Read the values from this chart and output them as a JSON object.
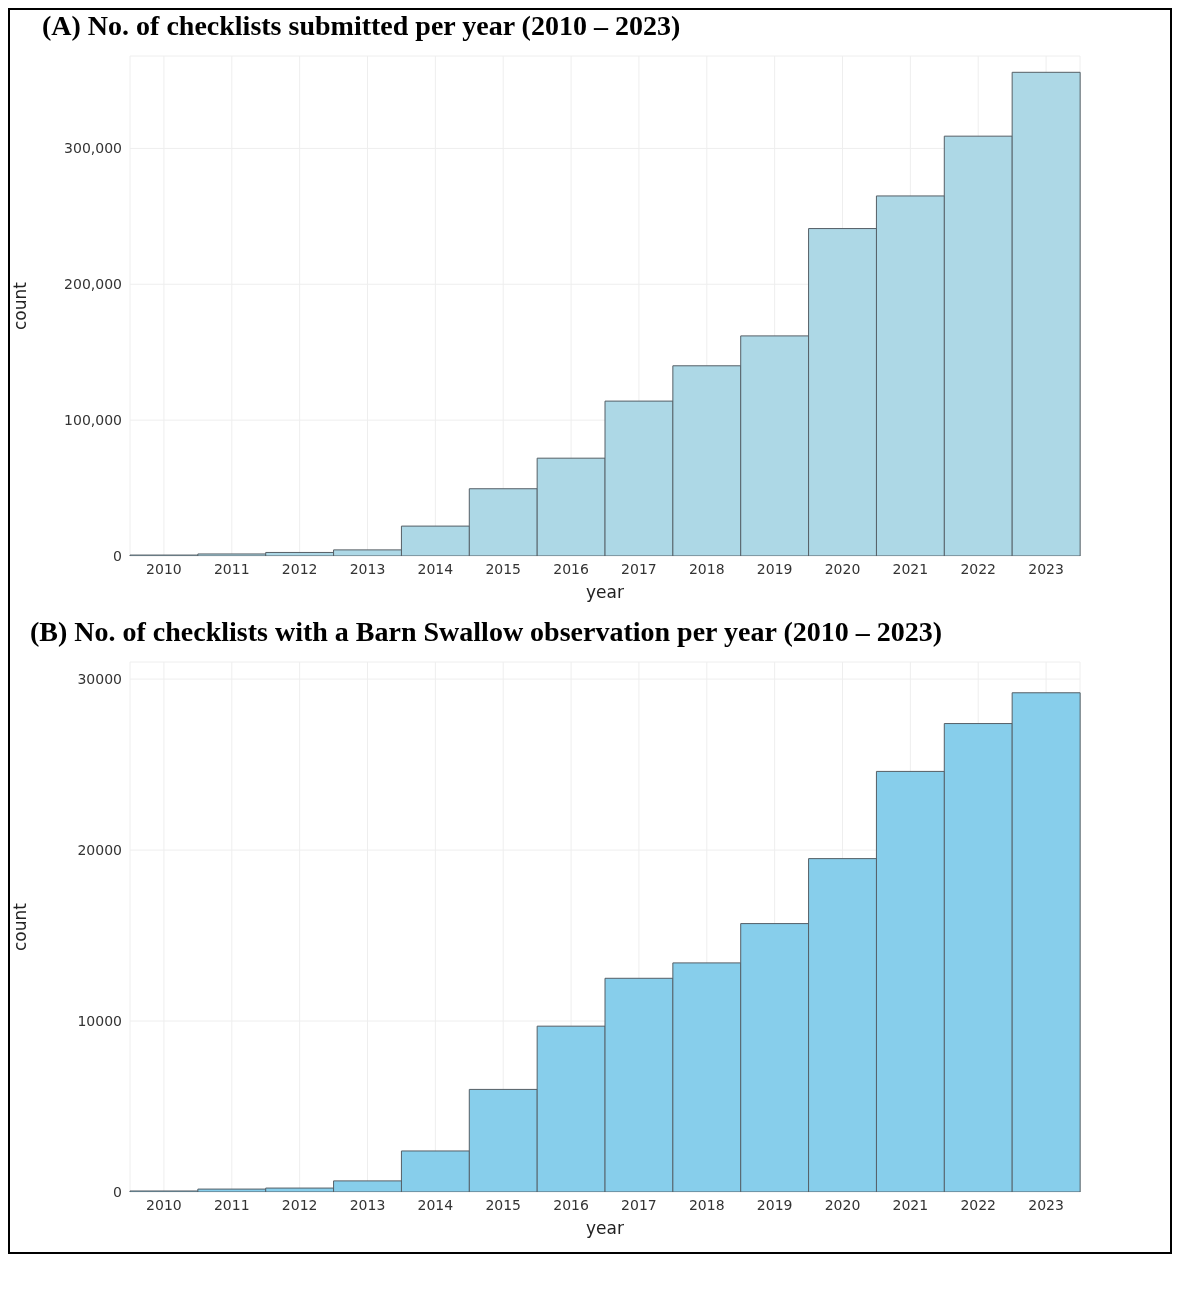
{
  "chart_data": [
    {
      "type": "bar",
      "title": "(A) No. of checklists submitted per year (2010 – 2023)",
      "xlabel": "year",
      "ylabel": "count",
      "categories": [
        "2010",
        "2011",
        "2012",
        "2013",
        "2014",
        "2015",
        "2016",
        "2017",
        "2018",
        "2019",
        "2020",
        "2021",
        "2022",
        "2023"
      ],
      "values": [
        700,
        1500,
        2600,
        4500,
        22000,
        49500,
        72000,
        114000,
        140000,
        162000,
        241000,
        265000,
        309000,
        356000
      ],
      "color": "#add8e6",
      "ylim": [
        0,
        368000
      ],
      "yticks": [
        {
          "value": 0,
          "label": "0"
        },
        {
          "value": 100000,
          "label": "100,000"
        },
        {
          "value": 200000,
          "label": "200,000"
        },
        {
          "value": 300000,
          "label": "300,000"
        }
      ],
      "grid": true
    },
    {
      "type": "bar",
      "title": "(B) No. of checklists with a Barn Swallow observation per year (2010 – 2023)",
      "xlabel": "year",
      "ylabel": "count",
      "categories": [
        "2010",
        "2011",
        "2012",
        "2013",
        "2014",
        "2015",
        "2016",
        "2017",
        "2018",
        "2019",
        "2020",
        "2021",
        "2022",
        "2023"
      ],
      "values": [
        60,
        170,
        230,
        650,
        2400,
        6000,
        9700,
        12500,
        13400,
        15700,
        19500,
        24600,
        27400,
        29200
      ],
      "color": "#87ceeb",
      "ylim": [
        0,
        31000
      ],
      "yticks": [
        0,
        10000,
        20000,
        30000
      ],
      "grid": true
    }
  ]
}
